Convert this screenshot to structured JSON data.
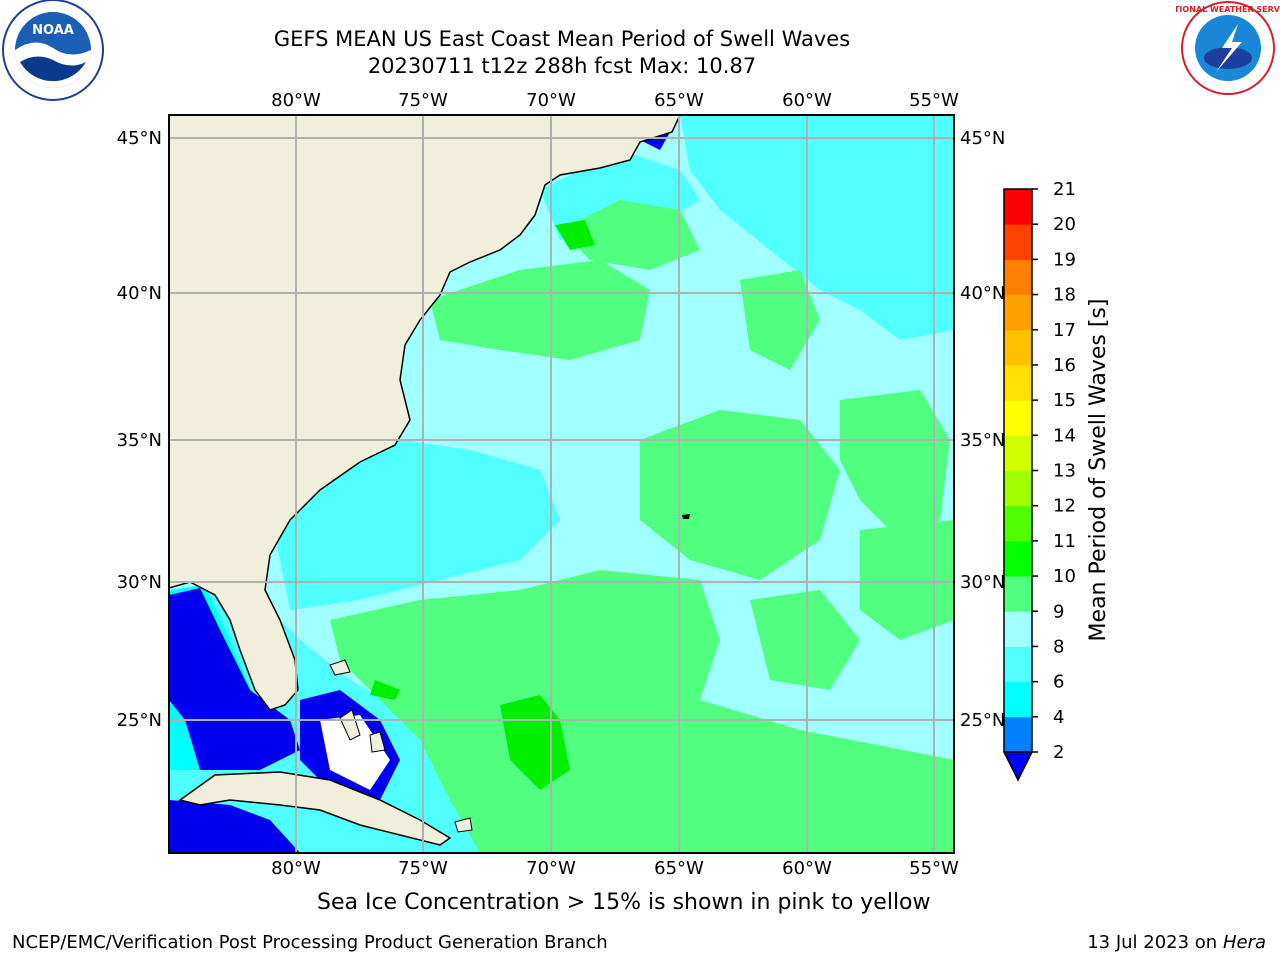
{
  "title": {
    "line1": "GEFS MEAN US East Coast Mean Period of Swell Waves",
    "line2": "20230711 t12z 288h fcst   Max: 10.87"
  },
  "map": {
    "lon_labels": [
      "80°W",
      "75°W",
      "70°W",
      "65°W",
      "60°W",
      "55°W"
    ],
    "lat_labels": [
      "45°N",
      "40°N",
      "35°N",
      "30°N",
      "25°N"
    ],
    "regions": [
      "US East Coast",
      "Florida",
      "Cuba",
      "Bahamas",
      "Gulf of Mexico",
      "Atlantic Ocean"
    ]
  },
  "colorbar": {
    "label": "Mean Period of Swell Waves [s]",
    "ticks": [
      "2",
      "4",
      "6",
      "8",
      "9",
      "10",
      "11",
      "12",
      "13",
      "14",
      "15",
      "16",
      "17",
      "18",
      "19",
      "20",
      "21"
    ],
    "colors": [
      "#0000ff",
      "#0080ff",
      "#00ffff",
      "#50ffff",
      "#a0ffff",
      "#50ff80",
      "#00ff00",
      "#50ff00",
      "#a0ff00",
      "#d0ff00",
      "#ffff00",
      "#ffe000",
      "#ffc000",
      "#ffa000",
      "#ff8000",
      "#ff4000",
      "#ff0000"
    ],
    "extend_color": "#0000ff"
  },
  "logos": {
    "noaa_text": "NOAA",
    "nws_text": "NATIONAL WEATHER SERVICE"
  },
  "caption": "Sea Ice Concentration > 15% is shown in pink to yellow",
  "footer": {
    "left": "NCEP/EMC/Verification Post Processing Product Generation Branch",
    "right_date": "13 Jul 2023 on ",
    "right_host": "Hera"
  }
}
